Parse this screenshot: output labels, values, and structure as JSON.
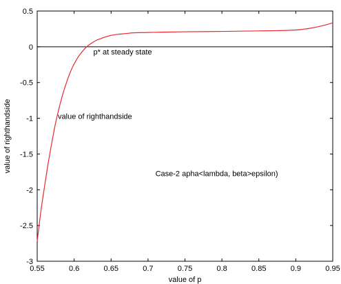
{
  "chart_data": {
    "type": "line",
    "title": "",
    "xlabel": "value of p",
    "ylabel": "value of righthandside",
    "xlim": [
      0.55,
      0.95
    ],
    "ylim": [
      -3,
      0.5
    ],
    "xticks": [
      0.55,
      0.6,
      0.65,
      0.7,
      0.75,
      0.8,
      0.85,
      0.9,
      0.95
    ],
    "xtick_labels": [
      "0.55",
      "0.6",
      "0.65",
      "0.7",
      "0.75",
      "0.8",
      "0.85",
      "0.9",
      "0.95"
    ],
    "yticks": [
      -3,
      -2.5,
      -2,
      -1.5,
      -1,
      -0.5,
      0,
      0.5
    ],
    "ytick_labels": [
      "-3",
      "-2.5",
      "-2",
      "-1.5",
      "-1",
      "-0.5",
      "0",
      "0.5"
    ],
    "grid": false,
    "legend": "none",
    "series": [
      {
        "color": "#e8292c",
        "x": [
          0.55,
          0.555,
          0.56,
          0.565,
          0.57,
          0.575,
          0.58,
          0.585,
          0.59,
          0.595,
          0.6,
          0.605,
          0.61,
          0.615,
          0.62,
          0.625,
          0.63,
          0.635,
          0.64,
          0.645,
          0.65,
          0.66,
          0.67,
          0.68,
          0.7,
          0.72,
          0.75,
          0.8,
          0.85,
          0.875,
          0.9,
          0.91,
          0.92,
          0.93,
          0.94,
          0.95
        ],
        "y": [
          -2.72,
          -2.3,
          -1.95,
          -1.62,
          -1.33,
          -1.06,
          -0.84,
          -0.65,
          -0.49,
          -0.35,
          -0.24,
          -0.15,
          -0.08,
          -0.02,
          0.025,
          0.06,
          0.09,
          0.11,
          0.13,
          0.145,
          0.16,
          0.175,
          0.185,
          0.195,
          0.2,
          0.205,
          0.21,
          0.215,
          0.222,
          0.226,
          0.235,
          0.245,
          0.26,
          0.28,
          0.305,
          0.335
        ]
      }
    ],
    "reference_line": {
      "y": 0,
      "color": "#000000"
    },
    "annotations": [
      {
        "text": "p* at steady state",
        "x": 0.626,
        "y": -0.07
      },
      {
        "text": "value of righthandside",
        "x": 0.578,
        "y": -0.97
      },
      {
        "text": "Case-2 apha<lambda, beta>epsilon)",
        "x": 0.71,
        "y": -1.77
      }
    ]
  }
}
